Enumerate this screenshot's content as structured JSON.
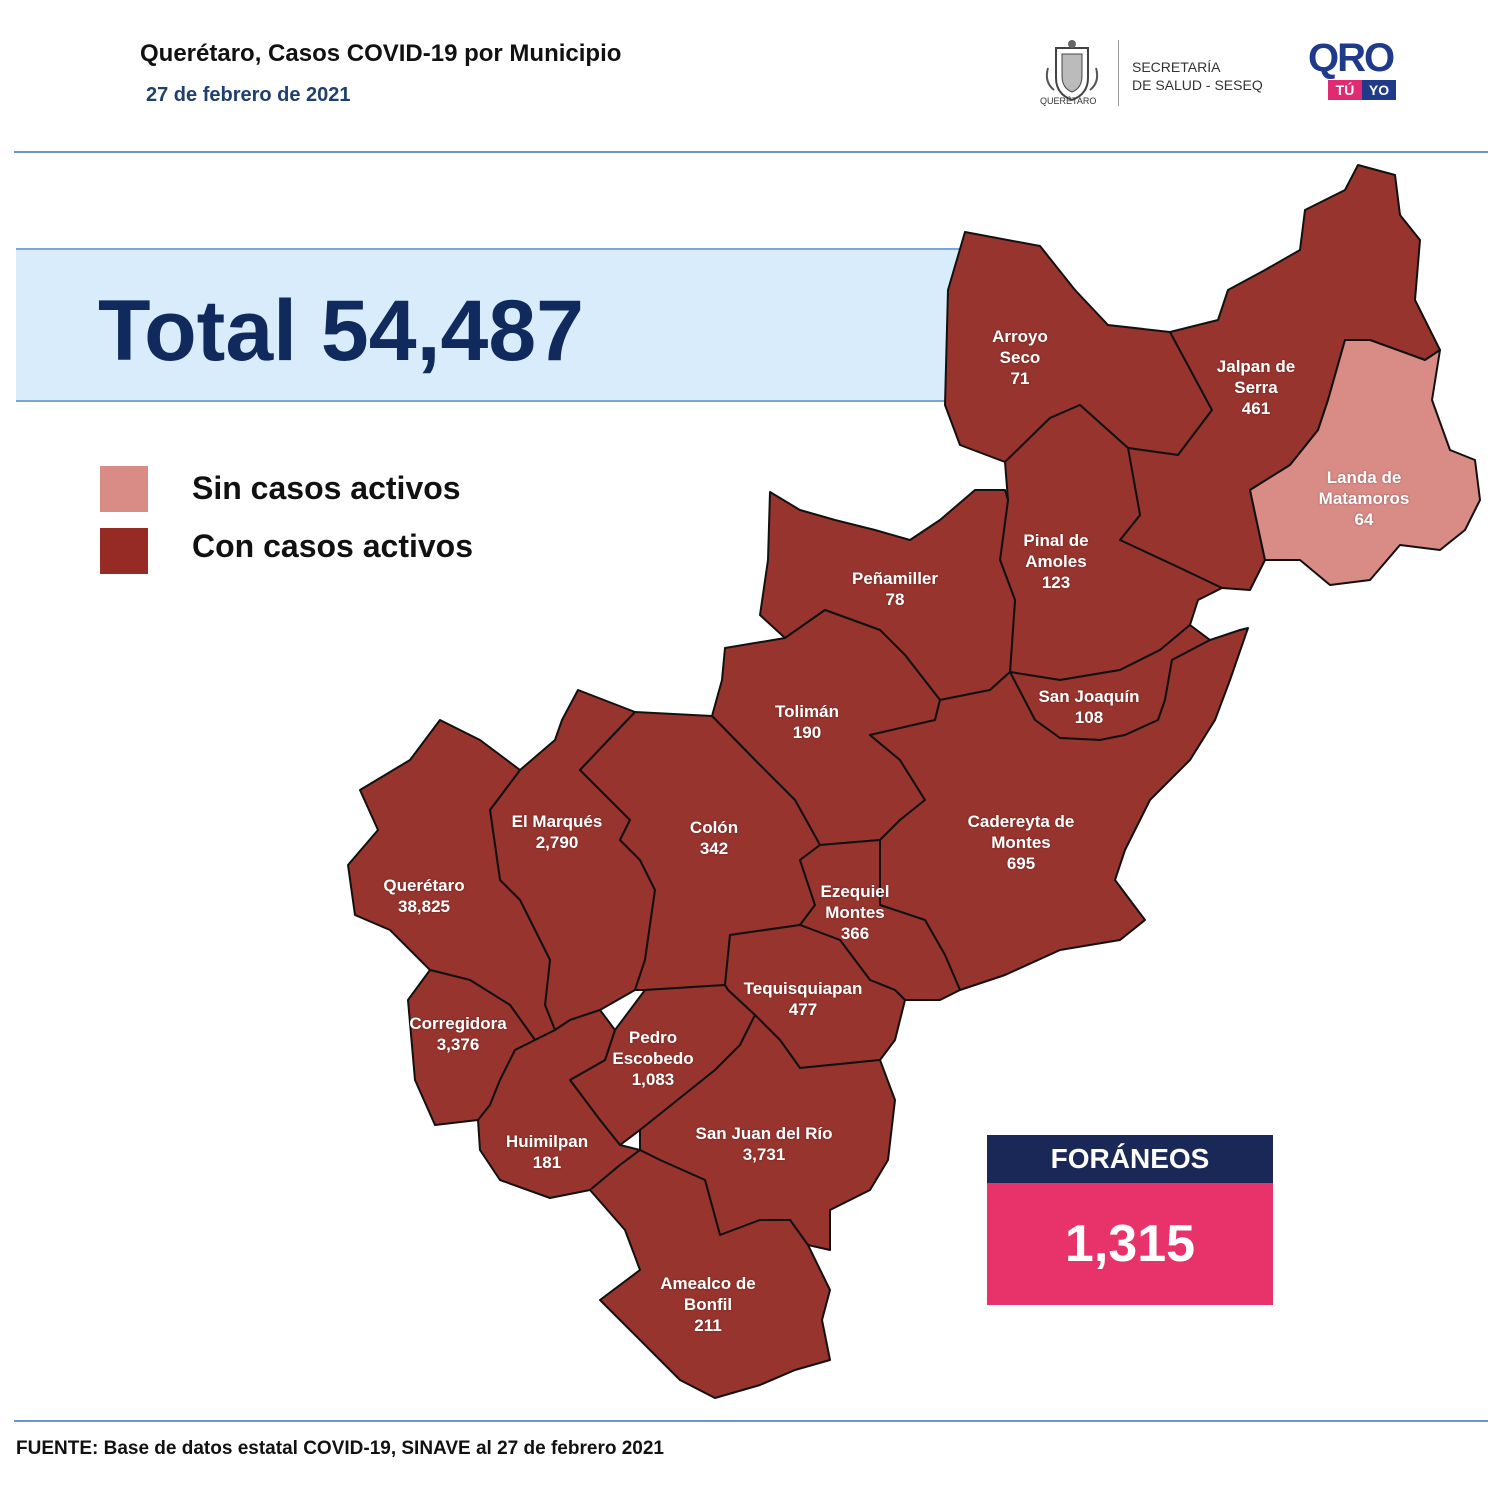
{
  "header": {
    "title": "Querétaro, Casos COVID-19 por Municipio",
    "date": "27 de febrero de 2021",
    "gov_caption": "QUERÉTARO",
    "secretaria_line1": "SECRETARÍA",
    "secretaria_line2": "DE SALUD - SESEQ",
    "brand_word": "QRO",
    "brand_tag_1": "TÚ",
    "brand_tag_2": "YO"
  },
  "total": {
    "text": "Total 54,487"
  },
  "legend": {
    "items": [
      {
        "label": "Sin casos activos",
        "color": "#d98b86"
      },
      {
        "label": "Con casos activos",
        "color": "#962a25"
      }
    ]
  },
  "colors": {
    "active": "#98342e",
    "inactive": "#d98b86",
    "border": "#111111",
    "foraneos_head": "#1a2858",
    "foraneos_body": "#e8336a",
    "accent_line": "#6f93c8"
  },
  "municipios": [
    {
      "name": "Arroyo\nSeco",
      "cases": "71",
      "status": "active"
    },
    {
      "name": "Jalpan de\nSerra",
      "cases": "461",
      "status": "active"
    },
    {
      "name": "Landa de\nMatamoros",
      "cases": "64",
      "status": "inactive"
    },
    {
      "name": "Pinal de\nAmoles",
      "cases": "123",
      "status": "active"
    },
    {
      "name": "Peñamiller",
      "cases": "78",
      "status": "active"
    },
    {
      "name": "San Joaquín",
      "cases": "108",
      "status": "active"
    },
    {
      "name": "Tolimán",
      "cases": "190",
      "status": "active"
    },
    {
      "name": "Cadereyta de\nMontes",
      "cases": "695",
      "status": "active"
    },
    {
      "name": "El  Marqués",
      "cases": "2,790",
      "status": "active"
    },
    {
      "name": "Colón",
      "cases": "342",
      "status": "active"
    },
    {
      "name": "Ezequiel\nMontes",
      "cases": "366",
      "status": "active"
    },
    {
      "name": "Querétaro",
      "cases": "38,825",
      "status": "active"
    },
    {
      "name": "Corregidora",
      "cases": "3,376",
      "status": "active"
    },
    {
      "name": "Tequisquiapan",
      "cases": "477",
      "status": "active"
    },
    {
      "name": "Pedro\nEscobedo",
      "cases": "1,083",
      "status": "active"
    },
    {
      "name": "Huimilpan",
      "cases": "181",
      "status": "active"
    },
    {
      "name": "San Juan del Río",
      "cases": "3,731",
      "status": "active"
    },
    {
      "name": "Amealco de\nBonfil",
      "cases": "211",
      "status": "active"
    }
  ],
  "foraneos": {
    "label": "FORÁNEOS",
    "value": "1,315"
  },
  "source": "FUENTE: Base de datos estatal COVID-19, SINAVE al 27 de febrero 2021"
}
